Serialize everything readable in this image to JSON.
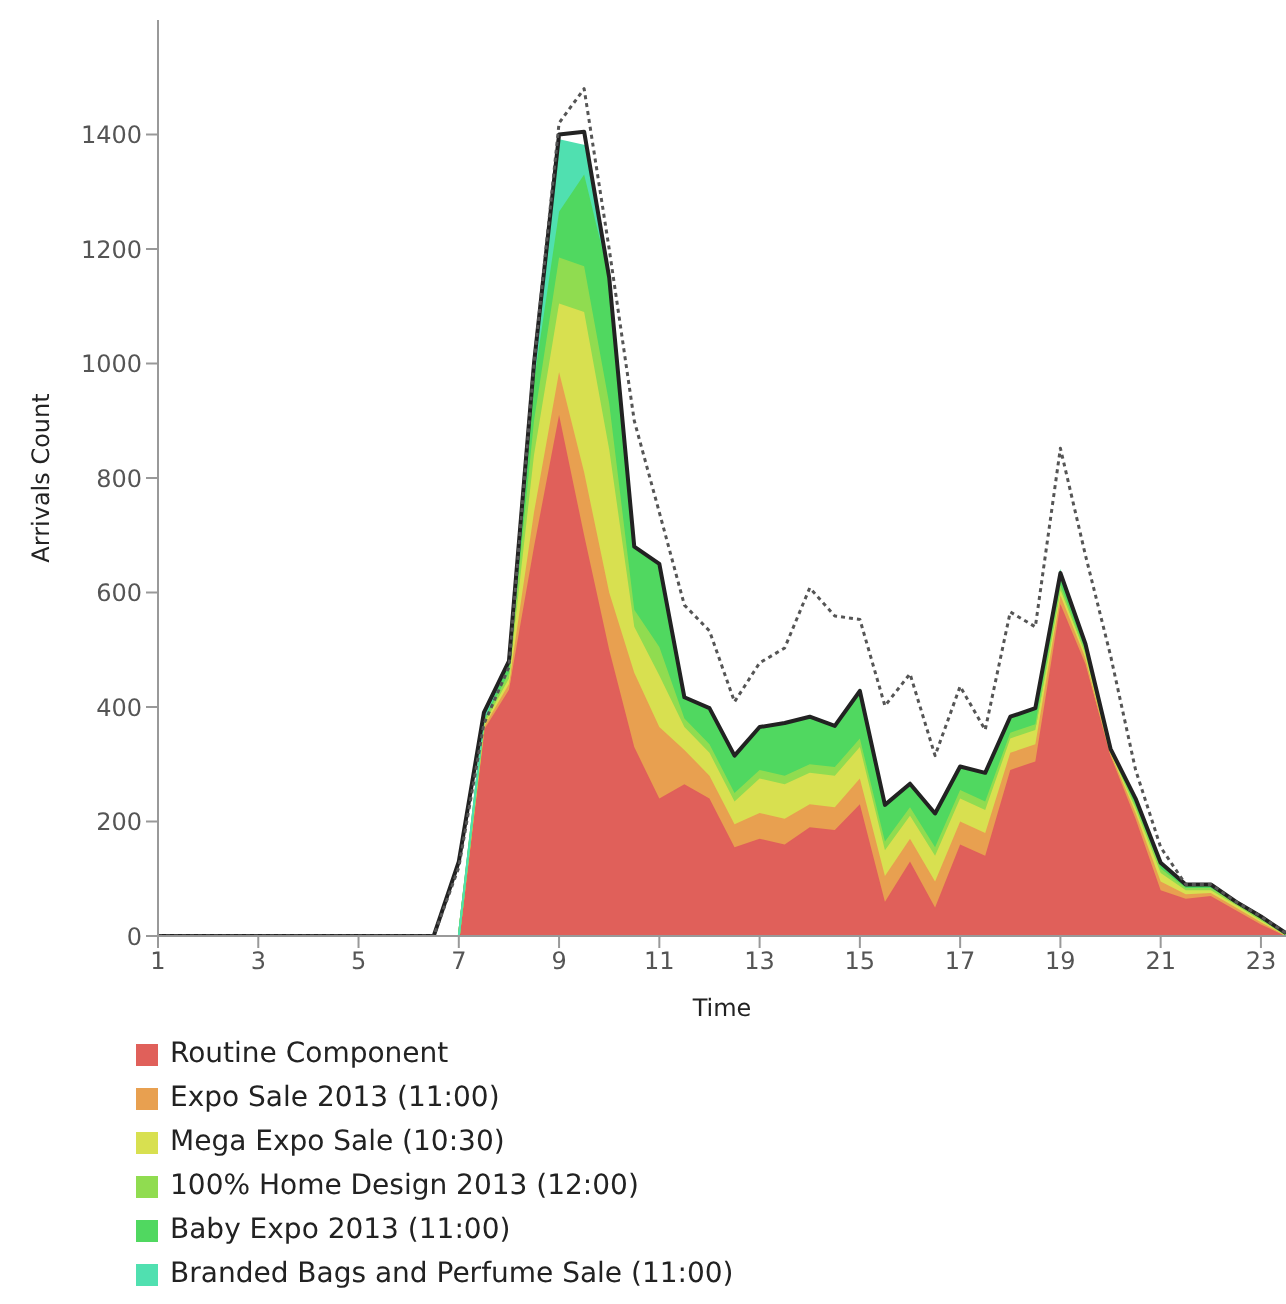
{
  "chart_data": {
    "type": "area",
    "stacked": true,
    "xlabel": "Time",
    "ylabel": "Arrivals Count",
    "xlim": [
      1,
      23.5
    ],
    "xticks": [
      1,
      3,
      5,
      7,
      9,
      11,
      13,
      15,
      17,
      19,
      21,
      23
    ],
    "ylim": [
      0,
      1600
    ],
    "yticks": [
      0,
      200,
      400,
      600,
      800,
      1000,
      1200,
      1400
    ],
    "grid": false,
    "legend": "bottom",
    "marker": "none",
    "x": [
      1,
      6.5,
      7,
      7.5,
      8,
      8.5,
      9,
      9.5,
      10,
      10.5,
      11,
      11.5,
      12,
      12.5,
      13,
      13.5,
      14,
      14.5,
      15,
      15.5,
      16,
      16.5,
      17,
      17.5,
      18,
      18.5,
      19,
      19.5,
      20,
      20.5,
      21,
      21.5,
      22,
      22.5,
      23,
      23.5
    ],
    "series": [
      {
        "name": "Routine Component",
        "color": "#e0605a",
        "values": [
          0,
          0,
          0,
          360,
          430,
          680,
          910,
          700,
          500,
          330,
          240,
          265,
          240,
          155,
          170,
          160,
          190,
          185,
          230,
          60,
          130,
          50,
          160,
          140,
          290,
          305,
          580,
          475,
          315,
          205,
          80,
          65,
          70,
          45,
          20,
          0
        ]
      },
      {
        "name": "Expo Sale 2013 (11:00)",
        "color": "#e8a050",
        "values": [
          0,
          0,
          0,
          5,
          10,
          60,
          75,
          110,
          100,
          130,
          125,
          60,
          40,
          40,
          45,
          45,
          40,
          40,
          45,
          45,
          40,
          45,
          40,
          40,
          30,
          30,
          15,
          10,
          5,
          10,
          15,
          8,
          5,
          5,
          4,
          1
        ]
      },
      {
        "name": "Mega Expo Sale (10:30)",
        "color": "#d8e050",
        "values": [
          0,
          0,
          0,
          5,
          10,
          100,
          120,
          280,
          250,
          80,
          90,
          40,
          40,
          40,
          60,
          60,
          55,
          55,
          55,
          45,
          40,
          45,
          40,
          40,
          25,
          25,
          10,
          8,
          3,
          8,
          15,
          7,
          5,
          4,
          3,
          1
        ]
      },
      {
        "name": "100% Home Design 2013 (12:00)",
        "color": "#90dc50",
        "values": [
          0,
          0,
          0,
          5,
          10,
          60,
          80,
          80,
          80,
          30,
          50,
          15,
          15,
          15,
          15,
          15,
          15,
          15,
          15,
          15,
          15,
          15,
          15,
          15,
          10,
          10,
          8,
          5,
          2,
          5,
          8,
          4,
          4,
          3,
          3,
          0
        ]
      },
      {
        "name": "Baby Expo 2013 (11:00)",
        "color": "#50d860",
        "values": [
          0,
          0,
          0,
          5,
          20,
          70,
          80,
          160,
          220,
          110,
          145,
          37,
          63,
          65,
          75,
          92,
          83,
          72,
          83,
          64,
          41,
          59,
          41,
          50,
          28,
          28,
          21,
          12,
          2,
          12,
          10,
          6,
          6,
          3,
          4,
          3
        ]
      },
      {
        "name": "Branded Bags and Perfume Sale (11:00)",
        "color": "#50e0b0",
        "values": [
          0,
          0,
          0,
          0,
          0,
          30,
          125,
          50,
          0,
          0,
          0,
          0,
          0,
          0,
          0,
          0,
          0,
          0,
          0,
          0,
          0,
          0,
          0,
          0,
          0,
          0,
          0,
          0,
          0,
          0,
          0,
          0,
          0,
          0,
          0,
          0
        ]
      },
      {
        "type": "line",
        "color": "#222222",
        "line_style": "solid",
        "values": [
          0,
          0,
          130,
          390,
          480,
          1000,
          1400,
          1405,
          1150,
          680,
          650,
          417,
          398,
          315,
          365,
          372,
          383,
          367,
          428,
          229,
          266,
          214,
          296,
          285,
          383,
          398,
          634,
          510,
          327,
          240,
          128,
          90,
          90,
          60,
          34,
          5
        ]
      },
      {
        "type": "line",
        "color": "#555555",
        "line_style": "dotted",
        "values": [
          0,
          0,
          120,
          370,
          470,
          1000,
          1420,
          1480,
          1200,
          900,
          740,
          578,
          533,
          409,
          477,
          503,
          608,
          559,
          553,
          402,
          458,
          315,
          436,
          360,
          566,
          540,
          852,
          665,
          490,
          290,
          155,
          90,
          90,
          60,
          34,
          5
        ]
      }
    ]
  }
}
